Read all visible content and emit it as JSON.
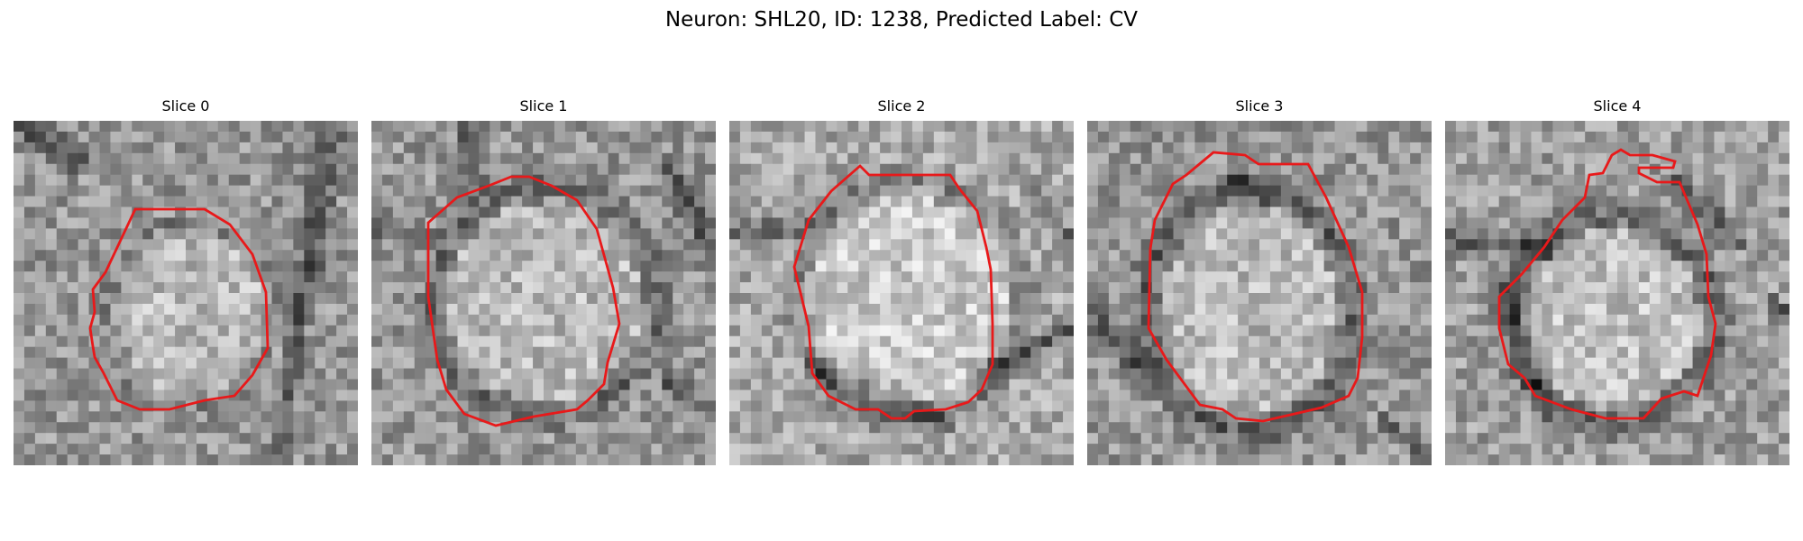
{
  "figure": {
    "title": "Neuron: SHL20, ID: 1238, Predicted Label: CV",
    "contour_color": "#e8191a"
  },
  "panels": [
    {
      "title": "Slice 0"
    },
    {
      "title": "Slice 1"
    },
    {
      "title": "Slice 2"
    },
    {
      "title": "Slice 3"
    },
    {
      "title": "Slice 4"
    }
  ]
}
